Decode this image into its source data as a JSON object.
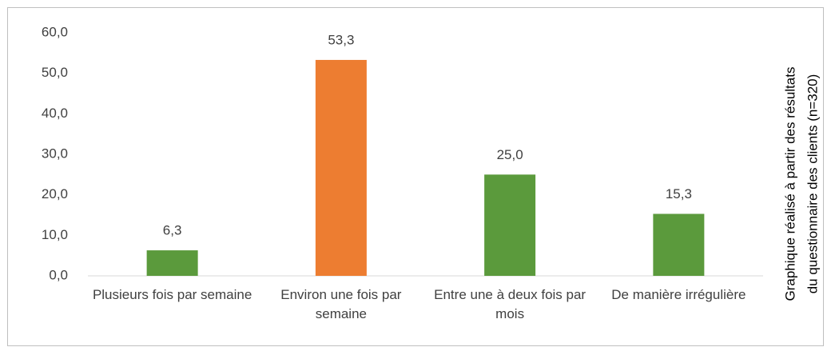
{
  "chart_data": {
    "type": "bar",
    "categories": [
      "Plusieurs fois par semaine",
      "Environ une fois par semaine",
      "Entre une à deux fois par mois",
      "De manière irrégulière"
    ],
    "values": [
      6.3,
      53.3,
      25.0,
      15.3
    ],
    "value_labels": [
      "6,3",
      "53,3",
      "25,0",
      "15,3"
    ],
    "colors": [
      "#5b9a3c",
      "#ed7d31",
      "#5b9a3c",
      "#5b9a3c"
    ],
    "ylim": [
      0,
      60
    ],
    "yticks": [
      {
        "value": 0,
        "label": "0,0"
      },
      {
        "value": 10,
        "label": "10,0"
      },
      {
        "value": 20,
        "label": "20,0"
      },
      {
        "value": 30,
        "label": "30,0"
      },
      {
        "value": 40,
        "label": "40,0"
      },
      {
        "value": 50,
        "label": "50,0"
      },
      {
        "value": 60,
        "label": "60,0"
      }
    ],
    "grid": false,
    "annotation": [
      "Graphique réalisé à partir des résultats",
      "du questionnaire des clients (n=320)"
    ]
  }
}
